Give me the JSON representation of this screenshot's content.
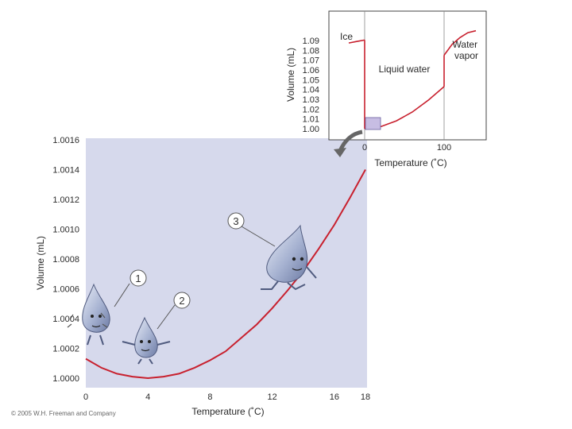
{
  "chart_data": [
    {
      "type": "line",
      "title": "",
      "xlabel": "Temperature (˚C)",
      "ylabel": "Volume (mL)",
      "xlim": [
        0,
        18
      ],
      "ylim": [
        0.9999,
        1.0016
      ],
      "x_ticks": [
        "0",
        "4",
        "8",
        "12",
        "16",
        "18"
      ],
      "y_ticks": [
        "1.0000",
        "1.0002",
        "1.0004",
        "1.0006",
        "1.0008",
        "1.0010",
        "1.0012",
        "1.0014",
        "1.0016"
      ],
      "series": [
        {
          "name": "",
          "color": "#c8202e",
          "x": [
            0,
            1,
            2,
            3,
            4,
            5,
            6,
            7,
            8,
            9,
            10,
            11,
            12,
            13,
            14,
            15,
            16,
            17,
            18
          ],
          "y": [
            1.00013,
            1.00007,
            1.00003,
            1.00001,
            1.0,
            1.00001,
            1.00003,
            1.00007,
            1.00012,
            1.00018,
            1.00027,
            1.00036,
            1.00047,
            1.00059,
            1.00072,
            1.00087,
            1.00103,
            1.00121,
            1.0014
          ]
        }
      ],
      "callouts": [
        "1",
        "2",
        "3"
      ],
      "background": "#d6d9ec",
      "grid": false
    },
    {
      "type": "line",
      "title": "",
      "xlabel": "Temperature (˚C)",
      "ylabel": "Volume (mL)",
      "xlim": [
        -20,
        140
      ],
      "ylim": [
        0.995,
        1.095
      ],
      "x_ticks": [
        "0",
        "100"
      ],
      "y_ticks": [
        "1.00",
        "1.01",
        "1.02",
        "1.03",
        "1.04",
        "1.05",
        "1.06",
        "1.07",
        "1.08",
        "1.09"
      ],
      "phases": [
        "Ice",
        "Liquid water",
        "Water vapor"
      ],
      "series": [
        {
          "name": "",
          "color": "#c8202e",
          "x": [
            -20,
            -10,
            0
          ],
          "y": [
            1.0875,
            1.089,
            1.0905
          ]
        },
        {
          "name": "",
          "color": "#c8202e",
          "x": [
            0,
            20,
            40,
            60,
            80,
            100
          ],
          "y": [
            1.0,
            1.002,
            1.008,
            1.017,
            1.029,
            1.043
          ]
        },
        {
          "name": "",
          "color": "#c8202e",
          "x": [
            100,
            110,
            120,
            130,
            140
          ],
          "y": [
            1.075,
            1.086,
            1.093,
            1.098,
            1.1
          ]
        }
      ],
      "grid": false
    }
  ],
  "copyright": "© 2005 W.H. Freeman and Company"
}
